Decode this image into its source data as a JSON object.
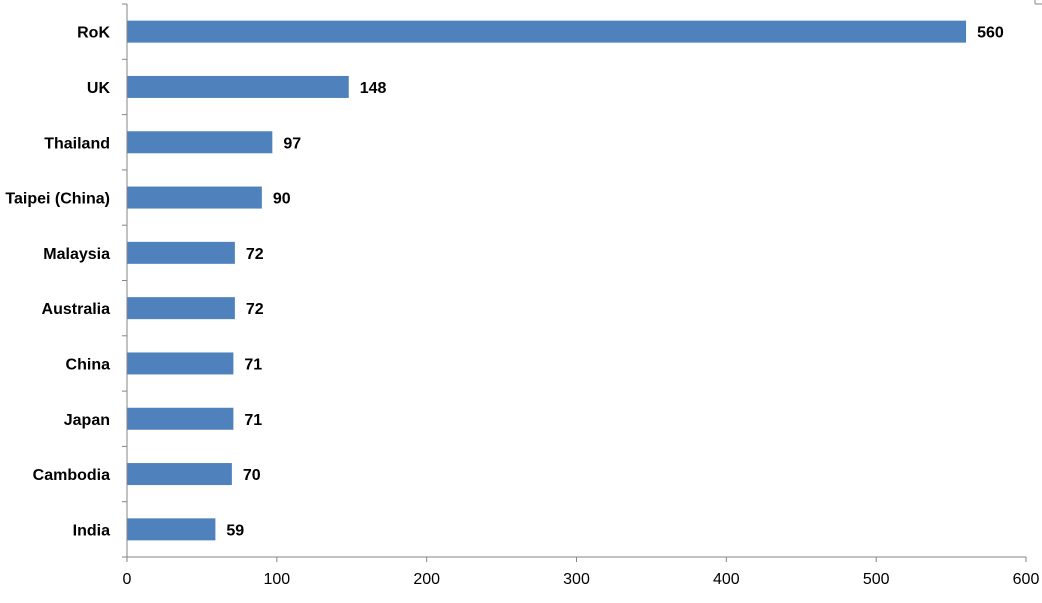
{
  "chart_data": {
    "type": "bar",
    "orientation": "horizontal",
    "categories": [
      "RoK",
      "UK",
      "Thailand",
      "Taipei (China)",
      "Malaysia",
      "Australia",
      "China",
      "Japan",
      "Cambodia",
      "India"
    ],
    "values": [
      560,
      148,
      97,
      90,
      72,
      72,
      71,
      71,
      70,
      59
    ],
    "value_labels": [
      "560",
      "148",
      "97",
      "90",
      "72",
      "72",
      "71",
      "71",
      "70",
      "59"
    ],
    "title": "",
    "xlabel": "",
    "ylabel": "",
    "xlim": [
      0,
      600
    ],
    "x_ticks": [
      0,
      100,
      200,
      300,
      400,
      500,
      600
    ],
    "x_tick_labels": [
      "0",
      "100",
      "200",
      "300",
      "400",
      "500",
      "600"
    ],
    "grid": false,
    "legend": "none",
    "bar_color": "#4F81BD"
  }
}
